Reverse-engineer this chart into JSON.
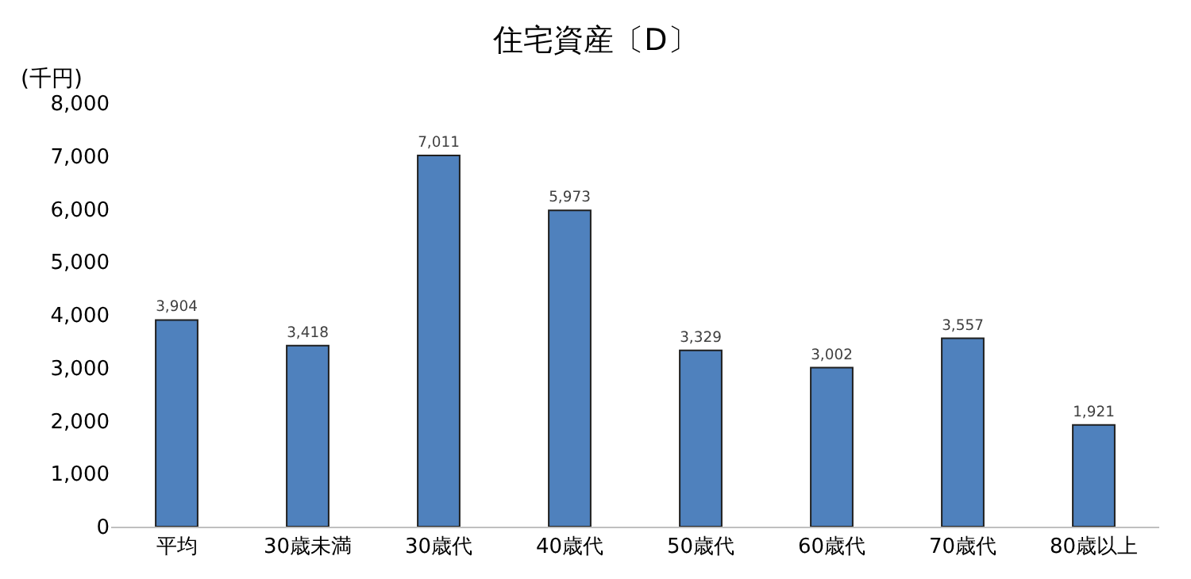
{
  "chart_data": {
    "type": "bar",
    "title": "住宅資産〔D〕",
    "ylabel": "(千円)",
    "categories": [
      "平均",
      "30歳未満",
      "30歳代",
      "40歳代",
      "50歳代",
      "60歳代",
      "70歳代",
      "80歳以上"
    ],
    "values": [
      3904,
      3418,
      7011,
      5973,
      3329,
      3002,
      3557,
      1921
    ],
    "color": "#4f81bd",
    "ylim": [
      0,
      8000
    ],
    "yticks": [
      {
        "value": 0,
        "label": "0"
      },
      {
        "value": 1000,
        "label": "1,000"
      },
      {
        "value": 2000,
        "label": "2,000"
      },
      {
        "value": 3000,
        "label": "3,000"
      },
      {
        "value": 4000,
        "label": "4,000"
      },
      {
        "value": 5000,
        "label": "5,000"
      },
      {
        "value": 6000,
        "label": "6,000"
      },
      {
        "value": 7000,
        "label": "7,000"
      },
      {
        "value": 8000,
        "label": "8,000"
      }
    ],
    "value_labels": [
      "3,904",
      "3,418",
      "7,011",
      "5,973",
      "3,329",
      "3,002",
      "3,557",
      "1,921"
    ]
  }
}
